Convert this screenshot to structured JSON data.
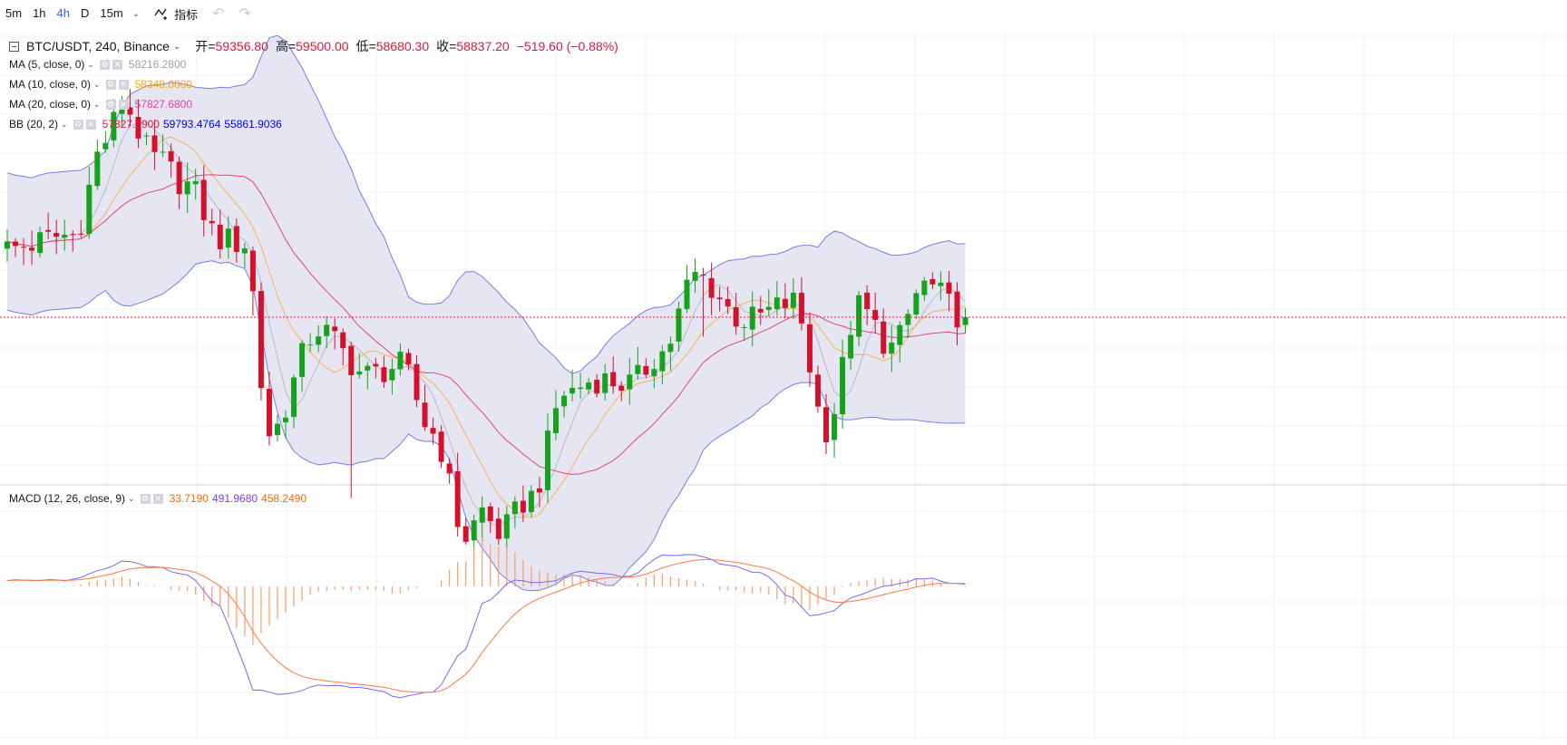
{
  "toolbar": {
    "intervals": [
      "5m",
      "1h",
      "4h",
      "D",
      "15m"
    ],
    "active_interval": "4h",
    "indicators_label": "指标"
  },
  "main_legend": {
    "symbol": "BTC/USDT, 240, Binance",
    "open_label": "开=",
    "open": "59356.80",
    "high_label": "高=",
    "high": "59500.00",
    "low_label": "低=",
    "low": "58680.30",
    "close_label": "收=",
    "close": "58837.20",
    "change": "−519.60 (−0.88%)"
  },
  "indicators": [
    {
      "name": "MA (5, close, 0)",
      "values": [
        "58216.2800"
      ],
      "colors": [
        "#a0a0a0"
      ]
    },
    {
      "name": "MA (10, close, 0)",
      "values": [
        "58348.0000"
      ],
      "colors": [
        "#ffa500"
      ]
    },
    {
      "name": "MA (20, close, 0)",
      "values": [
        "57827.6800"
      ],
      "colors": [
        "#e040a0"
      ]
    },
    {
      "name": "BB (20, 2)",
      "values": [
        "57827.6900",
        "59793.4764",
        "55861.9036"
      ],
      "colors": [
        "#e0163c",
        "#0000ff",
        "#0000ff"
      ]
    }
  ],
  "macd_legend": {
    "name": "MACD (12, 26, close, 9)",
    "values": [
      "33.7190",
      "491.9680",
      "458.2490"
    ],
    "colors": [
      "#ff6a00",
      "#7b3fe4",
      "#ff6a00"
    ]
  },
  "colors": {
    "up": "#15a31c",
    "down": "#d4112d",
    "bb_fill": "#e1e2f0",
    "bb_line": "#7b7be8",
    "ma5": "#b8b8c8",
    "ma10": "#f7b35a",
    "ma20": "#e0457a",
    "macd_line": "#7b68ee",
    "signal_line": "#ff7a3d",
    "hist": "#ff9a6a",
    "last_price_line": "#e0163c"
  },
  "chart_data": [
    {
      "type": "candlestick",
      "title": "BTC/USDT, 240, Binance",
      "candle_count": 118,
      "ylim": [
        57000,
        62000
      ],
      "last_price": 58837.2,
      "anchors": {
        "x": [
          0,
          8,
          12,
          14,
          18,
          22,
          26,
          29,
          32,
          38,
          44,
          48,
          52,
          56,
          58,
          60,
          64,
          68,
          72,
          76,
          80,
          84,
          90,
          96,
          100,
          104,
          108,
          112,
          117
        ],
        "close": [
          59600,
          59750,
          60800,
          61200,
          60600,
          60300,
          59700,
          59650,
          57550,
          58700,
          58200,
          58300,
          57550,
          56400,
          56700,
          56450,
          56850,
          58000,
          58150,
          58100,
          58450,
          59300,
          58800,
          59000,
          57600,
          58950,
          58500,
          59200,
          58837.2
        ]
      }
    },
    {
      "type": "line",
      "title": "MACD (12, 26, close, 9)",
      "series_anchors": {
        "x": [
          0,
          8,
          12,
          14,
          18,
          22,
          26,
          28,
          30,
          34,
          38,
          44,
          48,
          52,
          56,
          58,
          62,
          66,
          70,
          76,
          80,
          84,
          88,
          92,
          96,
          98,
          100,
          104,
          108,
          112,
          117
        ],
        "macd": [
          120,
          130,
          380,
          520,
          400,
          240,
          -400,
          -1250,
          -2150,
          -2250,
          -2050,
          -2120,
          -2300,
          -2200,
          -1300,
          -350,
          120,
          80,
          300,
          200,
          650,
          650,
          450,
          280,
          -250,
          -620,
          -560,
          -170,
          30,
          170,
          30
        ]
      }
    }
  ]
}
